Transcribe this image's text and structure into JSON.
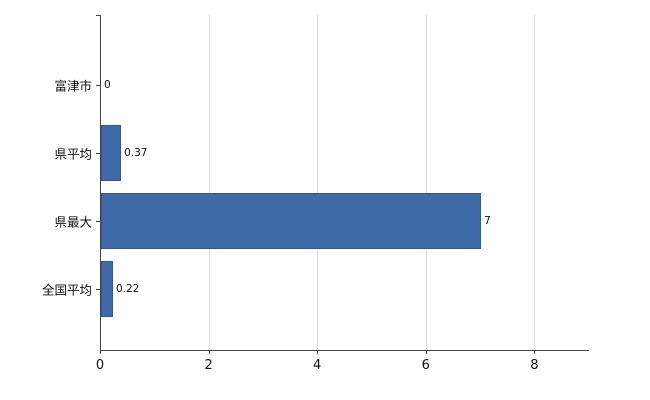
{
  "chart_data": {
    "type": "bar",
    "orientation": "horizontal",
    "title": "",
    "xlabel": "",
    "ylabel": "",
    "categories": [
      "富津市",
      "県平均",
      "県最大",
      "全国平均"
    ],
    "values": [
      0,
      0.37,
      7,
      0.22
    ],
    "value_labels": [
      "0",
      "0.37",
      "7",
      "0.22"
    ],
    "xticks": [
      0,
      2,
      4,
      6,
      8
    ],
    "xtick_labels": [
      "0",
      "2",
      "4",
      "6",
      "8"
    ],
    "xlim": [
      0,
      9
    ],
    "grid": "vertical-light",
    "legend": "none",
    "bar_color": "#3e6aa8",
    "axis_color": "#444444",
    "gridline_color": "#d9d9d9"
  }
}
